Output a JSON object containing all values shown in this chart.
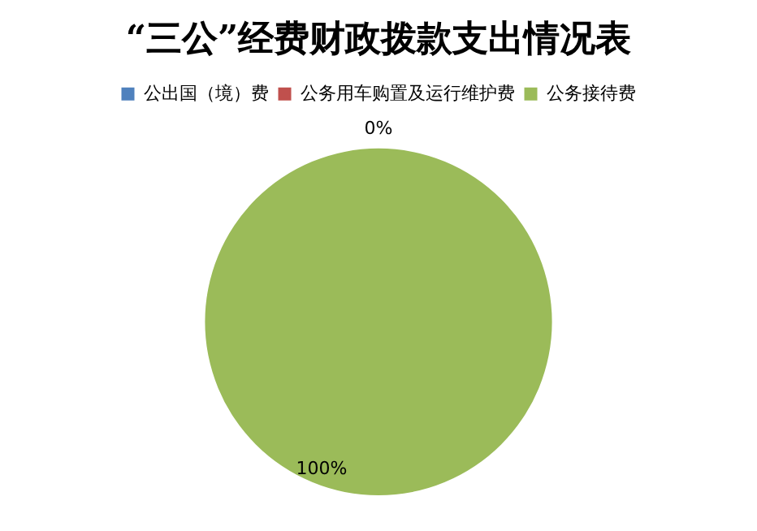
{
  "chart_data": {
    "type": "pie",
    "title": "“三公”经费财政拨款支出情况表",
    "categories": [
      "公出国（境）费",
      "公务用车购置及运行维护费",
      "公务接待费"
    ],
    "values": [
      0,
      0,
      100
    ],
    "colors": [
      "#4f81bd",
      "#c0504d",
      "#9bbb59"
    ],
    "value_labels": [
      null,
      "0%",
      "100%"
    ],
    "legend": "top"
  }
}
